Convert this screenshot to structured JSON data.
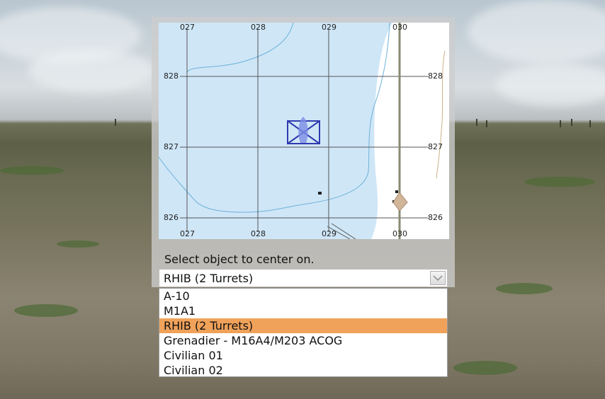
{
  "map": {
    "grid_top_labels": [
      "027",
      "028",
      "029",
      "030"
    ],
    "grid_bottom_labels": [
      "027",
      "028",
      "029",
      "030"
    ],
    "grid_left_labels": [
      "828",
      "827",
      "826"
    ],
    "grid_right_labels": [
      "828",
      "827",
      "826"
    ],
    "water_color": "#cfe6f7",
    "unit_symbol_color": "#2f3bb0"
  },
  "selector": {
    "prompt": "Select object to center on.",
    "selected_value": "RHIB (2 Turrets)",
    "options": [
      {
        "label": "A-10"
      },
      {
        "label": "M1A1"
      },
      {
        "label": "RHIB (2 Turrets)",
        "selected": true
      },
      {
        "label": "Grenadier - M16A4/M203 ACOG"
      },
      {
        "label": "Civilian 01"
      },
      {
        "label": "Civilian 02"
      }
    ],
    "highlight_color": "#f0a25a"
  }
}
